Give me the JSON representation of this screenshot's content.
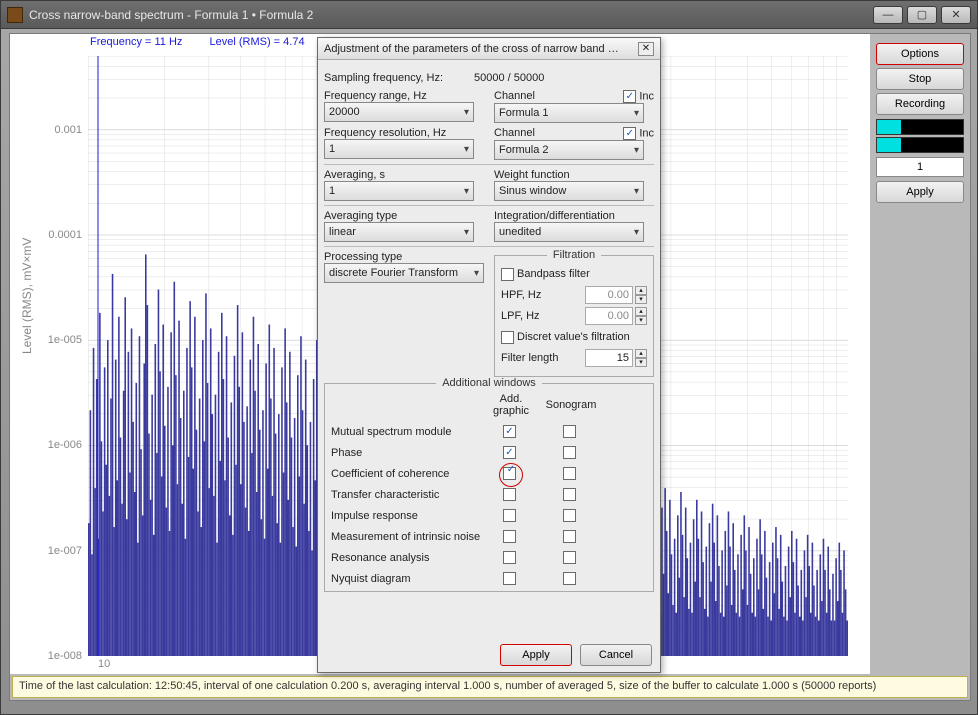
{
  "window": {
    "title": "Cross narrow-band spectrum - Formula 1 • Formula 2",
    "min_icon": "—",
    "max_icon": "▢",
    "close_icon": "✕"
  },
  "chart": {
    "freq_readout": "Frequency = 11 Hz",
    "rms_readout": "Level (RMS)  = 4.74",
    "y_label": "Level (RMS), mV×mV",
    "x_tick_10": "10",
    "background_color": "#ffffff",
    "bar_color": "#3a3a9e",
    "grid_color": "#dcdcdc",
    "freq_line_color": "#1a1adf",
    "y_scale": "log",
    "y_ticks": [
      "0.001",
      "0.0001",
      "1e-005",
      "1e-006",
      "1e-007",
      "1e-008"
    ],
    "ylim_exp": [
      -8,
      -2.3
    ],
    "x_scale": "log",
    "bars": [
      26,
      55,
      18,
      71,
      35,
      63,
      22,
      80,
      47,
      29,
      66,
      41,
      73,
      33,
      58,
      90,
      25,
      68,
      37,
      79,
      48,
      31,
      60,
      84,
      27,
      70,
      39,
      76,
      52,
      34,
      62,
      21,
      74,
      45,
      28,
      67,
      95,
      82,
      49,
      32,
      59,
      23,
      72,
      44,
      86,
      65,
      38,
      77,
      51,
      30,
      61,
      24,
      75,
      46,
      88,
      64,
      36,
      78,
      53,
      31,
      60,
      22,
      71,
      43,
      83,
      66,
      40,
      79,
      50,
      29,
      58,
      25,
      73,
      47,
      85,
      62,
      35,
      76,
      54,
      33,
      59,
      21,
      70,
      42,
      80,
      63,
      37,
      74,
      48,
      28,
      57,
      23,
      69,
      41,
      82,
      61,
      36,
      75,
      52,
      30,
      56,
      24,
      68,
      44,
      79,
      60,
      34,
      72,
      50,
      27,
      55,
      22,
      67,
      40,
      77,
      58,
      33,
      71,
      49,
      26,
      54,
      21,
      66,
      39,
      76,
      57,
      32,
      70,
      48,
      25,
      53,
      20,
      64,
      38,
      74,
      55,
      31,
      68,
      46,
      24,
      52,
      19,
      63,
      37,
      73,
      54,
      30,
      67,
      45,
      23,
      50,
      18,
      61,
      36,
      70,
      52,
      28,
      65,
      44,
      22,
      49,
      17,
      60,
      35,
      69,
      51,
      27,
      62,
      42,
      21,
      48,
      16,
      58,
      34,
      66,
      49,
      26,
      61,
      41,
      20,
      46,
      15,
      57,
      33,
      65,
      48,
      25,
      59,
      40,
      19,
      45,
      14,
      55,
      31,
      63,
      46,
      24,
      58,
      38,
      18,
      44,
      13,
      54,
      30,
      61,
      45,
      23,
      56,
      37,
      17,
      42,
      12,
      52,
      29,
      59,
      43,
      21,
      55,
      36,
      16,
      41,
      11,
      50,
      28,
      58,
      42,
      20,
      53,
      35,
      15,
      40,
      10,
      49,
      27,
      56,
      41,
      19,
      52,
      33,
      14,
      38,
      10,
      47,
      25,
      54,
      39,
      18,
      50,
      32,
      13,
      37,
      9,
      46,
      24,
      52,
      38,
      17,
      48,
      31,
      12,
      36,
      8,
      44,
      23,
      51,
      36,
      16,
      47,
      30,
      11,
      34,
      8,
      43,
      22,
      49,
      35,
      15,
      45,
      28,
      10,
      33,
      7,
      41,
      21,
      48,
      34,
      14,
      44,
      27,
      9,
      32,
      7,
      40,
      20,
      46,
      33,
      13,
      42,
      26,
      9,
      31,
      6,
      38,
      19,
      44,
      31,
      12,
      41,
      25,
      8,
      29,
      6,
      37,
      18,
      43,
      30,
      11,
      39,
      23,
      7,
      28,
      5,
      35,
      17,
      41,
      29,
      10,
      38,
      22,
      7,
      27,
      5,
      34,
      16,
      40,
      28,
      10,
      36,
      21,
      6,
      26,
      4,
      33,
      15,
      38,
      27,
      9,
      35,
      20,
      6,
      25,
      4,
      31,
      14,
      37,
      25,
      8,
      33,
      19,
      5,
      23,
      3,
      30,
      13,
      35,
      24,
      8,
      32,
      18,
      5,
      22,
      3,
      28,
      12,
      34,
      23,
      7,
      30,
      17,
      4,
      21,
      3,
      27,
      11,
      32,
      22,
      7,
      29,
      16,
      4,
      20,
      2,
      26,
      11,
      31,
      21,
      6,
      28,
      15,
      3,
      19,
      2,
      24,
      10,
      29,
      20,
      5,
      26,
      14,
      3,
      18,
      2,
      23,
      9,
      28,
      19,
      5,
      25,
      13,
      3,
      17,
      2,
      22,
      9,
      27,
      18,
      4,
      24,
      12,
      2,
      16,
      1,
      21,
      8,
      25,
      17,
      4,
      23,
      11,
      2,
      15,
      1,
      20,
      7,
      24,
      16,
      3,
      22,
      10,
      2,
      14,
      1,
      19,
      7,
      23,
      15,
      3,
      21,
      10,
      2,
      14,
      1,
      18,
      6,
      22,
      14,
      3,
      20,
      9,
      1,
      13,
      1,
      17,
      6,
      21,
      14,
      3,
      19,
      9,
      1
    ]
  },
  "side": {
    "options": "Options",
    "stop": "Stop",
    "recording": "Recording",
    "count": "1",
    "apply": "Apply",
    "swatch_bg": "#000000",
    "swatch_fg": "#00e0e0"
  },
  "status": "Time of the last calculation: 12:50:45, interval of one calculation 0.200 s, averaging interval 1.000 s, number of averaged 5, size of the buffer to calculate 1.000 s (50000 reports)",
  "dialog": {
    "title": "Adjustment of the parameters of the cross of narrow band …",
    "sampling_label": "Sampling frequency, Hz:",
    "sampling_value": "50000 / 50000",
    "freq_range_label": "Frequency range, Hz",
    "freq_range_value": "20000",
    "channel_label": "Channel",
    "inc_label": "Inc",
    "channel1_value": "Formula 1",
    "freq_res_label": "Frequency resolution, Hz",
    "freq_res_value": "1",
    "channel2_value": "Formula 2",
    "averaging_label": "Averaging, s",
    "averaging_value": "1",
    "weight_label": "Weight function",
    "weight_value": "Sinus window",
    "avg_type_label": "Averaging type",
    "avg_type_value": "linear",
    "intdiff_label": "Integration/differentiation",
    "intdiff_value": "unedited",
    "proc_type_label": "Processing type",
    "proc_type_value": "discrete Fourier Transform",
    "filtration_legend": "Filtration",
    "bandpass_label": "Bandpass filter",
    "hpf_label": "HPF, Hz",
    "hpf_value": "0.00",
    "lpf_label": "LPF, Hz",
    "lpf_value": "0.00",
    "discrete_label": "Discret value's filtration",
    "filter_len_label": "Filter length",
    "filter_len_value": "15",
    "aw_legend": "Additional windows",
    "aw_col1": "Add. graphic",
    "aw_col2": "Sonogram",
    "aw_rows": [
      "Mutual spectrum module",
      "Phase",
      "Coefficient of coherence",
      "Transfer characteristic",
      "Impulse response",
      "Measurement of intrinsic noise",
      "Resonance analysis",
      "Nyquist diagram"
    ],
    "aw_checks_col1": [
      true,
      true,
      true,
      false,
      false,
      false,
      false,
      false
    ],
    "aw_checks_col2": [
      false,
      false,
      false,
      false,
      false,
      false,
      false,
      false
    ],
    "apply": "Apply",
    "cancel": "Cancel"
  }
}
